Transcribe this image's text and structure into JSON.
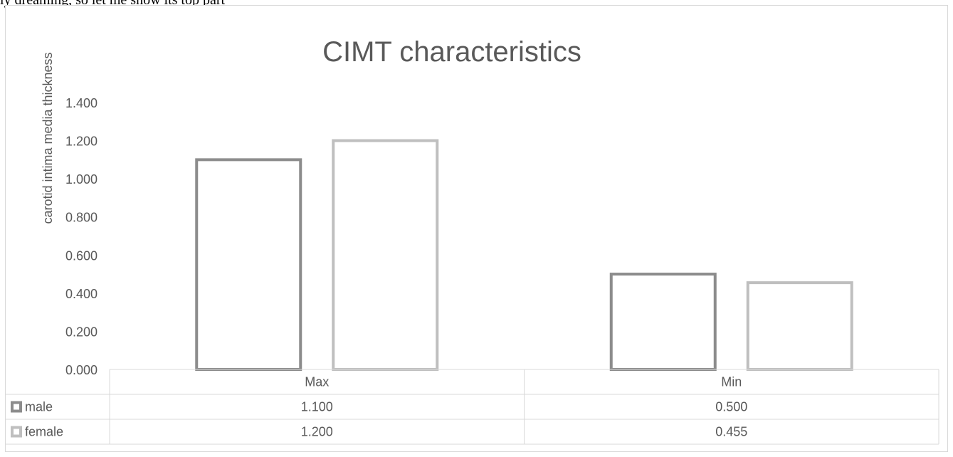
{
  "page": {
    "cropped_text": "ly dreaming, so let me show its top part"
  },
  "chart_data": {
    "type": "bar",
    "title": "CIMT characteristics",
    "xlabel": "",
    "ylabel": "carotid intima media thickness",
    "categories": [
      "Max",
      "Min"
    ],
    "series": [
      {
        "name": "male",
        "values": [
          1.1,
          0.5
        ],
        "labels": [
          "1.100",
          "0.500"
        ],
        "color": "#8c8c8c"
      },
      {
        "name": "female",
        "values": [
          1.2,
          0.455
        ],
        "labels": [
          "1.200",
          "0.455"
        ],
        "color": "#bfbfbf"
      }
    ],
    "ylim": [
      0,
      1.4
    ],
    "yticks": [
      "0.000",
      "0.200",
      "0.400",
      "0.600",
      "0.800",
      "1.000",
      "1.200",
      "1.400"
    ],
    "grid": false,
    "data_table": true,
    "legend": "in data table"
  }
}
